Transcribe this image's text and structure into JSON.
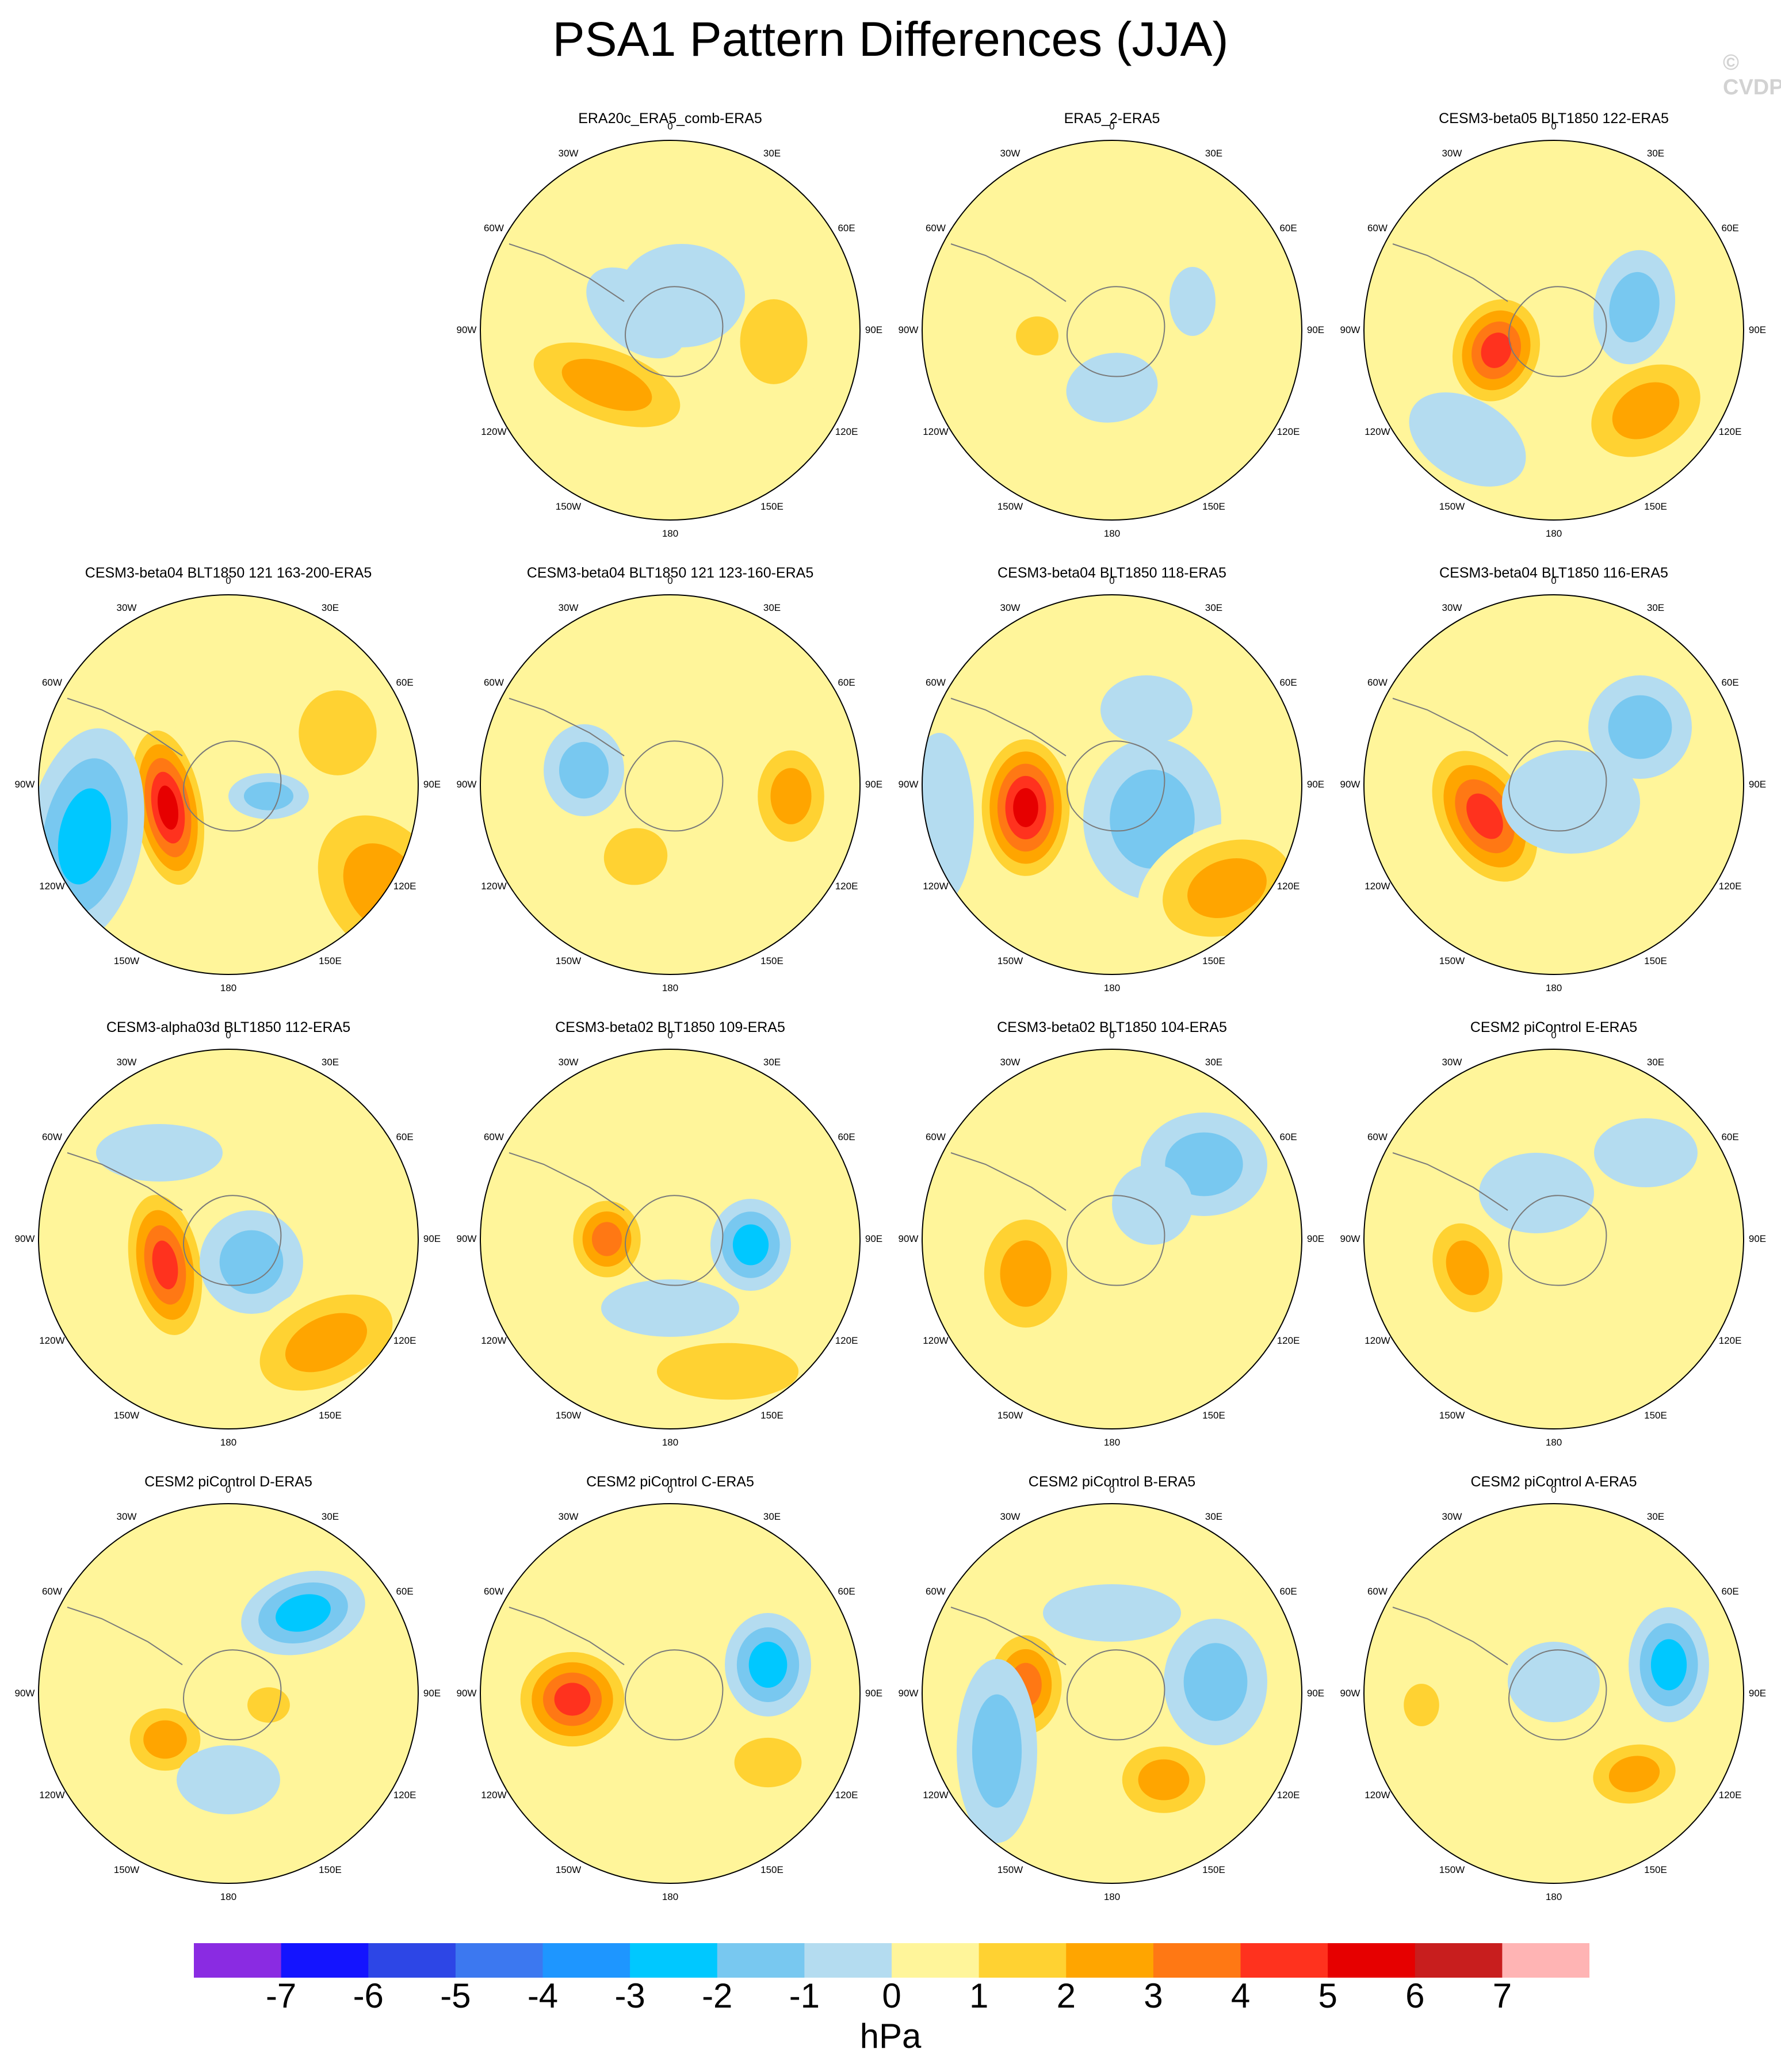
{
  "title": "PSA1 Pattern Differences (JJA)",
  "watermark": "© CVDP",
  "units": "hPa",
  "colorbar": {
    "colors": [
      "#8a2be2",
      "#1414ff",
      "#2d46e6",
      "#3c78f0",
      "#1e96ff",
      "#00c8ff",
      "#78c8f0",
      "#b4dcf0",
      "#fff59a",
      "#ffd232",
      "#ffa500",
      "#ff7814",
      "#ff321e",
      "#e60000",
      "#c81e1e",
      "#ffb4b4"
    ],
    "labels": [
      "-7",
      "-6",
      "-5",
      "-4",
      "-3",
      "-2",
      "-1",
      "0",
      "1",
      "2",
      "3",
      "4",
      "5",
      "6",
      "7"
    ]
  },
  "longitude_labels": [
    "0",
    "30E",
    "60E",
    "90E",
    "120E",
    "150E",
    "180",
    "150W",
    "120W",
    "90W",
    "60W",
    "30W"
  ],
  "panels": [
    {
      "title": "ERA20c_ERA5_comb-ERA5"
    },
    {
      "title": "ERA5_2-ERA5"
    },
    {
      "title": "CESM3-beta05 BLT1850 122-ERA5"
    },
    {
      "title": "CESM3-beta04 BLT1850 121 163-200-ERA5"
    },
    {
      "title": "CESM3-beta04 BLT1850 121 123-160-ERA5"
    },
    {
      "title": "CESM3-beta04 BLT1850 118-ERA5"
    },
    {
      "title": "CESM3-beta04 BLT1850 116-ERA5"
    },
    {
      "title": "CESM3-alpha03d BLT1850 112-ERA5"
    },
    {
      "title": "CESM3-beta02 BLT1850 109-ERA5"
    },
    {
      "title": "CESM3-beta02 BLT1850 104-ERA5"
    },
    {
      "title": "CESM2 piControl E-ERA5"
    },
    {
      "title": "CESM2 piControl D-ERA5"
    },
    {
      "title": "CESM2 piControl C-ERA5"
    },
    {
      "title": "CESM2 piControl B-ERA5"
    },
    {
      "title": "CESM2 piControl A-ERA5"
    }
  ]
}
